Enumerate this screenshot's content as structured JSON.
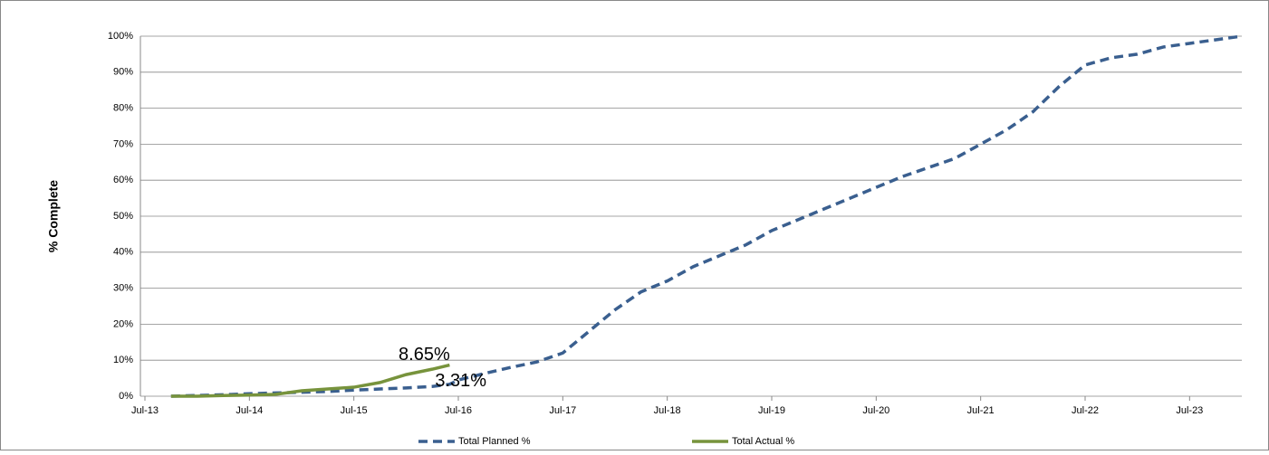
{
  "chart_data": {
    "type": "line",
    "y_label": "% Complete",
    "x": [
      "Oct-13",
      "Jan-14",
      "Apr-14",
      "Jul-14",
      "Oct-14",
      "Jan-15",
      "Apr-15",
      "Jul-15",
      "Oct-15",
      "Jan-16",
      "Apr-16",
      "Jun-16",
      "Jul-16",
      "Oct-16",
      "Jan-17",
      "Apr-17",
      "Jul-17",
      "Oct-17",
      "Jan-18",
      "Apr-18",
      "Jul-18",
      "Oct-18",
      "Jan-19",
      "Apr-19",
      "Jul-19",
      "Oct-19",
      "Jan-20",
      "Apr-20",
      "Jul-20",
      "Oct-20",
      "Jan-21",
      "Apr-21",
      "Jul-21",
      "Oct-21",
      "Jan-22",
      "Apr-22",
      "Jul-22",
      "Oct-22",
      "Jan-23",
      "Apr-23",
      "Jul-23",
      "Oct-23",
      "Jan-24"
    ],
    "series": [
      {
        "name": "Total Planned %",
        "color": "#3a5f8f",
        "dash": true,
        "values": [
          0,
          0.2,
          0.4,
          0.7,
          0.9,
          1.1,
          1.3,
          1.7,
          2.0,
          2.3,
          2.7,
          3.31,
          4.5,
          6.3,
          8,
          9.5,
          12,
          18,
          24,
          29,
          32,
          36,
          39,
          42,
          46,
          49,
          52,
          55,
          58,
          61,
          63.5,
          66,
          70,
          74,
          79,
          86,
          92,
          94,
          95,
          97,
          98,
          99,
          100
        ],
        "value_labels": [
          null,
          null,
          null,
          null,
          null,
          null,
          null,
          null,
          null,
          null,
          null,
          "3.31%",
          null,
          null,
          null,
          null,
          null,
          null,
          null,
          null,
          null,
          null,
          null,
          null,
          null,
          null,
          null,
          null,
          null,
          null,
          null,
          null,
          null,
          null,
          null,
          null,
          null,
          null,
          null,
          null,
          null,
          null,
          null
        ]
      },
      {
        "name": "Total Actual %",
        "color": "#77933c",
        "dash": false,
        "values": [
          0,
          0,
          0.2,
          0.3,
          0.5,
          1.5,
          2.0,
          2.5,
          3.8,
          6.0,
          7.5,
          8.65,
          null,
          null,
          null,
          null,
          null,
          null,
          null,
          null,
          null,
          null,
          null,
          null,
          null,
          null,
          null,
          null,
          null,
          null,
          null,
          null,
          null,
          null,
          null,
          null,
          null,
          null,
          null,
          null,
          null,
          null,
          null
        ],
        "value_labels": [
          null,
          null,
          null,
          null,
          null,
          null,
          null,
          null,
          null,
          null,
          null,
          "8.65%",
          null,
          null,
          null,
          null,
          null,
          null,
          null,
          null,
          null,
          null,
          null,
          null,
          null,
          null,
          null,
          null,
          null,
          null,
          null,
          null,
          null,
          null,
          null,
          null,
          null,
          null,
          null,
          null,
          null,
          null,
          null
        ]
      }
    ],
    "xlim": [
      "Jul-13",
      "Jan-24"
    ],
    "xticks": [
      "Jul-13",
      "Jul-14",
      "Jul-15",
      "Jul-16",
      "Jul-17",
      "Jul-18",
      "Jul-19",
      "Jul-20",
      "Jul-21",
      "Jul-22",
      "Jul-23"
    ],
    "ylim": [
      0,
      100
    ],
    "yticks": [
      {
        "value": 0,
        "label": "0%"
      },
      {
        "value": 10,
        "label": "10%"
      },
      {
        "value": 20,
        "label": "20%"
      },
      {
        "value": 30,
        "label": "30%"
      },
      {
        "value": 40,
        "label": "40%"
      },
      {
        "value": 50,
        "label": "50%"
      },
      {
        "value": 60,
        "label": "60%"
      },
      {
        "value": 70,
        "label": "70%"
      },
      {
        "value": 80,
        "label": "80%"
      },
      {
        "value": 90,
        "label": "90%"
      },
      {
        "value": 100,
        "label": "100%"
      }
    ],
    "grid": true,
    "legend": "bottom"
  }
}
